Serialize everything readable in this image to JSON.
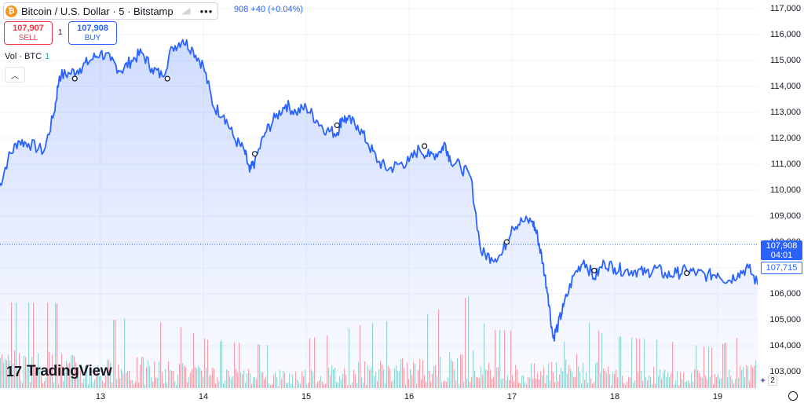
{
  "legend": {
    "coin_icon": "₿",
    "title": "Bitcoin / U.S. Dollar · 5 · Bitstamp",
    "more": "•••",
    "change": "908 +40 (+0.04%)"
  },
  "trade": {
    "sell_price": "107,907",
    "sell_label": "SELL",
    "spread": "1",
    "buy_price": "107,908",
    "buy_label": "BUY"
  },
  "volume_label": {
    "text": "Vol · BTC",
    "value": "1"
  },
  "collapse_icon": "︿",
  "brand": {
    "mark": "17",
    "text": "TradingView"
  },
  "price_axis": {
    "last_price": "107,908",
    "countdown": "04:01",
    "bid_price": "107,715"
  },
  "badge_count": "2",
  "colors": {
    "line": "#2962ff",
    "up_volume": "#26a69a",
    "down_volume": "#f23645"
  },
  "chart_data": {
    "type": "area",
    "symbol": "BTCUSD",
    "interval": "5",
    "ylim": [
      102700,
      117200
    ],
    "y_ticks": [
      "117,000",
      "116,000",
      "115,000",
      "114,000",
      "113,000",
      "112,000",
      "111,000",
      "110,000",
      "109,000",
      "108,000",
      "107,000",
      "106,000",
      "105,000",
      "104,000",
      "103,000"
    ],
    "x_ticks": [
      "13",
      "14",
      "15",
      "16",
      "17",
      "18",
      "19"
    ],
    "last_price": 107908,
    "series": [
      {
        "day": [
          12.0,
          12.1,
          12.2,
          12.3,
          12.45,
          12.55,
          12.6,
          12.7,
          12.8,
          12.9,
          13.0,
          13.1,
          13.2,
          13.3,
          13.4,
          13.5,
          13.6,
          13.7,
          13.8,
          13.9,
          14.0,
          14.1,
          14.2,
          14.3,
          14.4,
          14.45,
          14.5,
          14.6,
          14.7,
          14.8,
          14.9,
          15.0,
          15.1,
          15.2,
          15.3,
          15.35,
          15.4,
          15.5,
          15.6,
          15.7,
          15.8,
          15.9,
          16.0,
          16.1,
          16.2,
          16.3,
          16.35,
          16.4,
          16.5,
          16.6,
          16.7,
          16.8,
          16.9,
          17.0,
          17.1,
          17.2,
          17.25,
          17.3,
          17.35,
          17.4,
          17.45,
          17.5,
          17.6,
          17.7,
          17.8,
          17.9,
          18.0,
          18.1,
          18.2,
          18.3,
          18.4,
          18.5,
          18.6,
          18.7,
          18.8,
          18.9,
          19.0,
          19.1,
          19.2,
          19.3,
          19.4,
          19.45
        ],
        "price": [
          109900,
          111200,
          111900,
          111800,
          111500,
          113000,
          114400,
          114500,
          114700,
          115000,
          115300,
          115000,
          114600,
          115000,
          115300,
          114700,
          114400,
          115500,
          115800,
          115400,
          114800,
          113200,
          112900,
          112000,
          111500,
          110700,
          111100,
          112200,
          112800,
          113300,
          113000,
          113200,
          112700,
          112300,
          112200,
          112800,
          112700,
          112500,
          111800,
          111100,
          110800,
          111000,
          111100,
          111600,
          111300,
          111500,
          111800,
          111200,
          110900,
          110500,
          107600,
          107400,
          107500,
          108600,
          108800,
          108800,
          108200,
          107200,
          106000,
          104300,
          104800,
          105500,
          106700,
          107300,
          106600,
          107200,
          107000,
          106900,
          106900,
          106800,
          107000,
          106700,
          106800,
          106900,
          106800,
          106700,
          106800,
          106500,
          106800,
          107000,
          106300,
          107900
        ]
      }
    ],
    "volume": {
      "day": [
        12.55,
        12.95,
        13.35,
        13.8,
        14.05,
        14.65,
        15.2,
        15.55,
        16.1,
        16.6,
        16.75,
        17.3,
        17.45,
        17.55,
        17.7,
        17.9,
        18.45,
        18.95,
        19.3,
        19.45
      ],
      "btc": [
        68,
        52,
        57,
        48,
        38,
        34,
        42,
        51,
        56,
        74,
        47,
        44,
        95,
        82,
        55,
        42,
        38,
        32,
        44,
        64
      ]
    },
    "markers_day": [
      12.75,
      13.65,
      14.5,
      15.3,
      16.15,
      16.95,
      17.8,
      18.7
    ],
    "marker_prices": [
      114300,
      114300,
      111400,
      112500,
      111700,
      108000,
      106900,
      106800
    ]
  }
}
